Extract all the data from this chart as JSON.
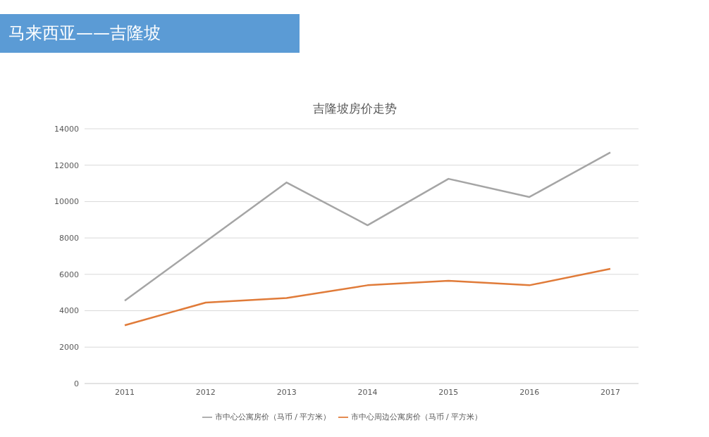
{
  "chart_data": {
    "type": "line",
    "title": "马来西亚——吉隆坡",
    "subtitle": "吉隆坡房价走势",
    "categories": [
      "2011",
      "2012",
      "2013",
      "2014",
      "2015",
      "2016",
      "2017"
    ],
    "series": [
      {
        "name": "市中心周边公寓房价（马币 / 平方米）",
        "color": "#e07b39",
        "values": [
          3200,
          4450,
          4700,
          5400,
          5650,
          5400,
          6300
        ]
      },
      {
        "name": "市中心公寓房价（马币 / 平方米）",
        "color": "#a5a5a5",
        "values": [
          4550,
          7800,
          11050,
          8700,
          11250,
          10250,
          12700
        ]
      }
    ],
    "ylim": [
      0,
      14000
    ],
    "yticks": [
      0,
      2000,
      4000,
      6000,
      8000,
      10000,
      12000,
      14000
    ],
    "grid": "y",
    "legend": "bottom",
    "marker": "none",
    "line_style": "solid"
  }
}
